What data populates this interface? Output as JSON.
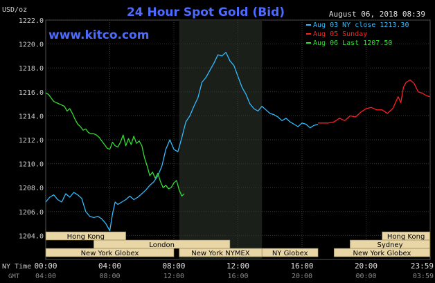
{
  "chart_data": {
    "type": "line",
    "title": "24 Hour Spot Gold (Bid)",
    "watermark": "www.kitco.com",
    "timestamp": "August 06, 2018 08:39",
    "ylabel": "USD/oz",
    "ylim": [
      1202,
      1222
    ],
    "y_ticks": [
      "1204.0",
      "1206.0",
      "1208.0",
      "1210.0",
      "1212.0",
      "1214.0",
      "1216.0",
      "1218.0",
      "1220.0",
      "1222.0"
    ],
    "x_row_label_ny": "NY Time",
    "x_row_label_gmt": "GMT",
    "x_ticks_ny": [
      "00:00",
      "04:00",
      "08:00",
      "12:00",
      "16:00",
      "20:00",
      "23:59"
    ],
    "x_ticks_gmt": [
      "04:00",
      "08:00",
      "12:00",
      "16:00",
      "20:00",
      "00:00",
      "03:59"
    ],
    "grid": true,
    "legend_position": "top-right",
    "colors": {
      "background": "#000000",
      "title": "#4d6bff",
      "watermark": "#4d6bff",
      "grid": "#3a3a3a",
      "text": "#d0d0d0",
      "nymex_shade": "#1a1f1a",
      "session_bar": "#e8d6a6",
      "session_text": "#000000"
    },
    "sessions": [
      {
        "label": "Hong Kong",
        "start": "00:00",
        "end": "05:00"
      },
      {
        "label": "London",
        "start": "03:00",
        "end": "11:30"
      },
      {
        "label": "New York Globex",
        "start": "00:00",
        "end": "08:00"
      },
      {
        "label": "New York NYMEX",
        "start": "08:20",
        "end": "13:30"
      },
      {
        "label": "NY Globex",
        "start": "13:30",
        "end": "17:00"
      },
      {
        "label": "Hong Kong",
        "start": "21:00",
        "end": "23:59"
      },
      {
        "label": "Sydney",
        "start": "19:00",
        "end": "23:59"
      },
      {
        "label": "New York Globex",
        "start": "18:00",
        "end": "23:59"
      }
    ],
    "series": [
      {
        "name": "Aug 03 NY close 1213.30",
        "color": "#33bbff",
        "x": [
          "00:00",
          "00:15",
          "00:30",
          "00:45",
          "01:00",
          "01:15",
          "01:30",
          "01:45",
          "02:00",
          "02:15",
          "02:30",
          "02:45",
          "03:00",
          "03:15",
          "03:30",
          "03:45",
          "04:00",
          "04:10",
          "04:20",
          "04:30",
          "04:45",
          "05:00",
          "05:15",
          "05:30",
          "05:45",
          "06:00",
          "06:15",
          "06:30",
          "06:45",
          "07:00",
          "07:15",
          "07:30",
          "07:45",
          "08:00",
          "08:15",
          "08:30",
          "08:45",
          "09:00",
          "09:15",
          "09:30",
          "09:45",
          "10:00",
          "10:15",
          "10:30",
          "10:45",
          "11:00",
          "11:15",
          "11:30",
          "11:45",
          "12:00",
          "12:15",
          "12:30",
          "12:45",
          "13:00",
          "13:15",
          "13:30",
          "13:45",
          "14:00",
          "14:15",
          "14:30",
          "14:45",
          "15:00",
          "15:15",
          "15:30",
          "15:45",
          "16:00",
          "16:15",
          "16:30",
          "16:45",
          "17:00"
        ],
        "y": [
          1206.8,
          1207.2,
          1207.4,
          1207.0,
          1206.8,
          1207.5,
          1207.2,
          1207.6,
          1207.4,
          1207.1,
          1206.0,
          1205.6,
          1205.5,
          1205.6,
          1205.4,
          1205.0,
          1204.4,
          1205.8,
          1206.8,
          1206.6,
          1206.8,
          1207.0,
          1207.3,
          1207.0,
          1207.2,
          1207.5,
          1207.8,
          1208.2,
          1208.5,
          1209.0,
          1209.8,
          1211.2,
          1212.0,
          1211.2,
          1211.0,
          1212.2,
          1213.5,
          1214.0,
          1214.8,
          1215.5,
          1216.8,
          1217.2,
          1217.8,
          1218.4,
          1219.1,
          1219.0,
          1219.3,
          1218.6,
          1218.2,
          1217.3,
          1216.4,
          1215.8,
          1215.0,
          1214.6,
          1214.4,
          1214.8,
          1214.5,
          1214.2,
          1214.1,
          1213.9,
          1213.6,
          1213.8,
          1213.5,
          1213.3,
          1213.1,
          1213.4,
          1213.3,
          1213.0,
          1213.2,
          1213.3
        ]
      },
      {
        "name": "Aug 05 Sunday",
        "color": "#ff2020",
        "x": [
          "17:00",
          "17:20",
          "17:40",
          "18:00",
          "18:20",
          "18:40",
          "19:00",
          "19:20",
          "19:40",
          "20:00",
          "20:20",
          "20:40",
          "21:00",
          "21:20",
          "21:40",
          "22:00",
          "22:10",
          "22:20",
          "22:30",
          "22:45",
          "23:00",
          "23:15",
          "23:30",
          "23:45",
          "23:59"
        ],
        "y": [
          1213.4,
          1213.4,
          1213.4,
          1213.5,
          1213.8,
          1213.6,
          1214.0,
          1213.9,
          1214.3,
          1214.6,
          1214.7,
          1214.5,
          1214.5,
          1214.2,
          1214.6,
          1215.6,
          1215.1,
          1216.4,
          1216.8,
          1217.0,
          1216.7,
          1216.0,
          1215.9,
          1215.7,
          1215.6
        ]
      },
      {
        "name": "Aug 06 Last 1207.50",
        "color": "#33dd33",
        "x": [
          "00:00",
          "00:10",
          "00:20",
          "00:30",
          "00:40",
          "00:50",
          "01:00",
          "01:10",
          "01:20",
          "01:30",
          "01:40",
          "01:50",
          "02:00",
          "02:10",
          "02:20",
          "02:30",
          "02:40",
          "02:50",
          "03:00",
          "03:10",
          "03:20",
          "03:30",
          "03:40",
          "03:50",
          "04:00",
          "04:10",
          "04:20",
          "04:30",
          "04:40",
          "04:50",
          "05:00",
          "05:10",
          "05:20",
          "05:30",
          "05:40",
          "05:50",
          "06:00",
          "06:10",
          "06:20",
          "06:30",
          "06:40",
          "06:50",
          "07:00",
          "07:10",
          "07:20",
          "07:30",
          "07:40",
          "07:50",
          "08:00",
          "08:10",
          "08:20",
          "08:30",
          "08:39"
        ],
        "y": [
          1215.9,
          1215.8,
          1215.5,
          1215.2,
          1215.1,
          1215.0,
          1214.9,
          1214.8,
          1214.4,
          1214.6,
          1214.2,
          1213.7,
          1213.3,
          1213.1,
          1212.8,
          1212.9,
          1212.6,
          1212.5,
          1212.5,
          1212.4,
          1212.2,
          1211.9,
          1211.6,
          1211.3,
          1211.2,
          1211.8,
          1211.5,
          1211.4,
          1211.8,
          1212.4,
          1211.5,
          1212.1,
          1211.6,
          1212.3,
          1211.7,
          1211.9,
          1211.5,
          1210.5,
          1209.8,
          1209.0,
          1209.3,
          1208.8,
          1209.2,
          1208.5,
          1208.0,
          1208.2,
          1207.9,
          1208.0,
          1208.4,
          1208.6,
          1207.8,
          1207.3,
          1207.5
        ]
      }
    ]
  }
}
